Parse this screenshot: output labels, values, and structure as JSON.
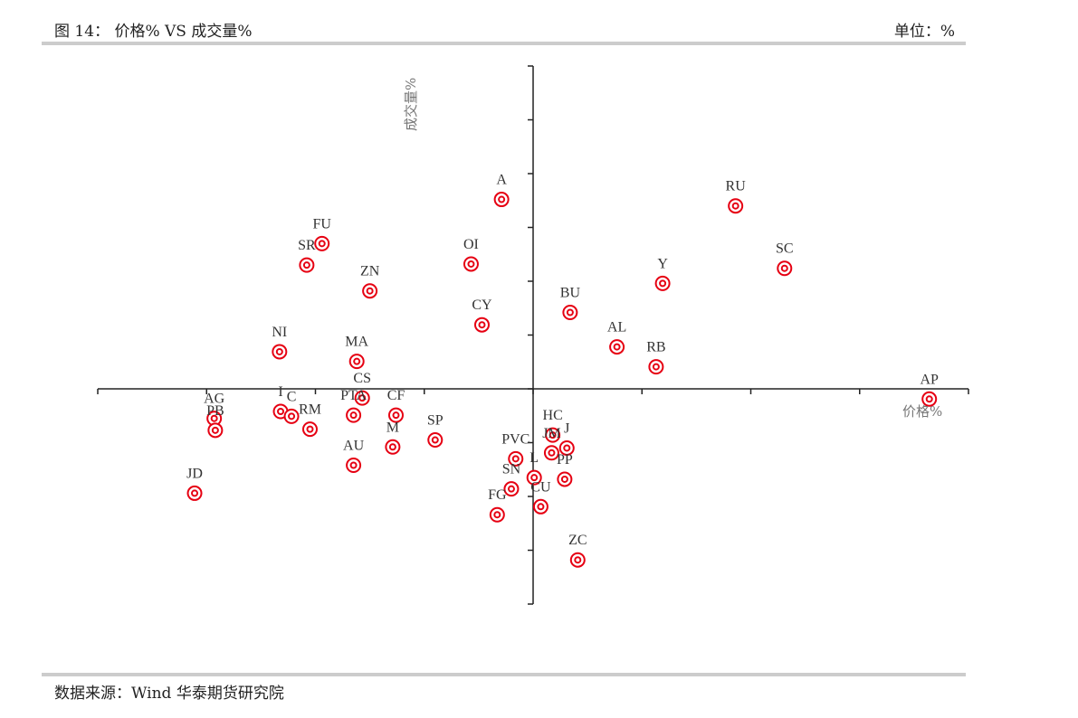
{
  "header": {
    "title": "图 14：  价格% VS  成交量%",
    "unit": "单位：%"
  },
  "footer": {
    "source": "数据来源：Wind  华泰期货研究院"
  },
  "chart_data": {
    "type": "scatter",
    "xlabel": "价格%",
    "ylabel": "成交量%",
    "xlim": [
      -4.0,
      4.0
    ],
    "ylim": [
      -4.0,
      6.0
    ],
    "x_tick_step": 1,
    "y_tick_step": 1,
    "grid": false,
    "legend": "none",
    "marker_color": "#e60012",
    "points": [
      {
        "label": "A",
        "x": -0.29,
        "y": 3.52
      },
      {
        "label": "RU",
        "x": 1.86,
        "y": 3.4
      },
      {
        "label": "FU",
        "x": -1.94,
        "y": 2.7
      },
      {
        "label": "SR",
        "x": -2.08,
        "y": 2.3
      },
      {
        "label": "OI",
        "x": -0.57,
        "y": 2.32
      },
      {
        "label": "SC",
        "x": 2.31,
        "y": 2.24
      },
      {
        "label": "ZN",
        "x": -1.5,
        "y": 1.82
      },
      {
        "label": "Y",
        "x": 1.19,
        "y": 1.96
      },
      {
        "label": "BU",
        "x": 0.34,
        "y": 1.42
      },
      {
        "label": "CY",
        "x": -0.47,
        "y": 1.19
      },
      {
        "label": "AL",
        "x": 0.77,
        "y": 0.78
      },
      {
        "label": "NI",
        "x": -2.33,
        "y": 0.69
      },
      {
        "label": "MA",
        "x": -1.62,
        "y": 0.51
      },
      {
        "label": "RB",
        "x": 1.13,
        "y": 0.41
      },
      {
        "label": "CS",
        "x": -1.57,
        "y": -0.17
      },
      {
        "label": "AP",
        "x": 3.64,
        "y": -0.19
      },
      {
        "label": "AG",
        "x": -2.93,
        "y": -0.55
      },
      {
        "label": "PB",
        "x": -2.92,
        "y": -0.77
      },
      {
        "label": "I",
        "x": -2.32,
        "y": -0.42
      },
      {
        "label": "C",
        "x": -2.22,
        "y": -0.51
      },
      {
        "label": "RM",
        "x": -2.05,
        "y": -0.75
      },
      {
        "label": "PTA",
        "x": -1.65,
        "y": -0.49
      },
      {
        "label": "CF",
        "x": -1.26,
        "y": -0.49
      },
      {
        "label": "SP",
        "x": -0.9,
        "y": -0.95
      },
      {
        "label": "M",
        "x": -1.29,
        "y": -1.08
      },
      {
        "label": "AU",
        "x": -1.65,
        "y": -1.42
      },
      {
        "label": "HC",
        "x": 0.18,
        "y": -0.86
      },
      {
        "label": "JM",
        "x": 0.17,
        "y": -1.19
      },
      {
        "label": "J",
        "x": 0.31,
        "y": -1.1
      },
      {
        "label": "PVC",
        "x": -0.16,
        "y": -1.3
      },
      {
        "label": "L",
        "x": 0.01,
        "y": -1.65
      },
      {
        "label": "PP",
        "x": 0.29,
        "y": -1.68
      },
      {
        "label": "SN",
        "x": -0.2,
        "y": -1.86
      },
      {
        "label": "CU",
        "x": 0.07,
        "y": -2.19
      },
      {
        "label": "FG",
        "x": -0.33,
        "y": -2.34
      },
      {
        "label": "JD",
        "x": -3.11,
        "y": -1.94
      },
      {
        "label": "ZC",
        "x": 0.41,
        "y": -3.18
      }
    ]
  }
}
